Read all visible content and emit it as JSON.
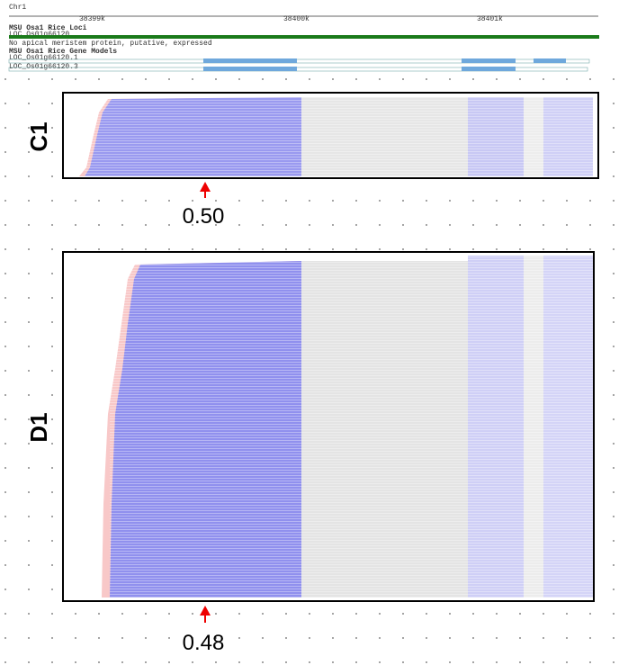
{
  "header": {
    "chromosome": "Chr1",
    "ruler": [
      "38399k",
      "38400k",
      "38401k"
    ]
  },
  "tracks": [
    {
      "title": "MSU Osa1 Rice Loci",
      "items": [
        "LOC_Os01g66120",
        "No apical meristem protein, putative, expressed"
      ]
    },
    {
      "title": "MSU Osa1 Rice Gene Models",
      "items": [
        "LOC_Os01g66120.1",
        "LOC_Os01g66120.3"
      ]
    }
  ],
  "panels": [
    {
      "label": "C1",
      "marker": "0.50"
    },
    {
      "label": "D1",
      "marker": "0.48"
    }
  ]
}
